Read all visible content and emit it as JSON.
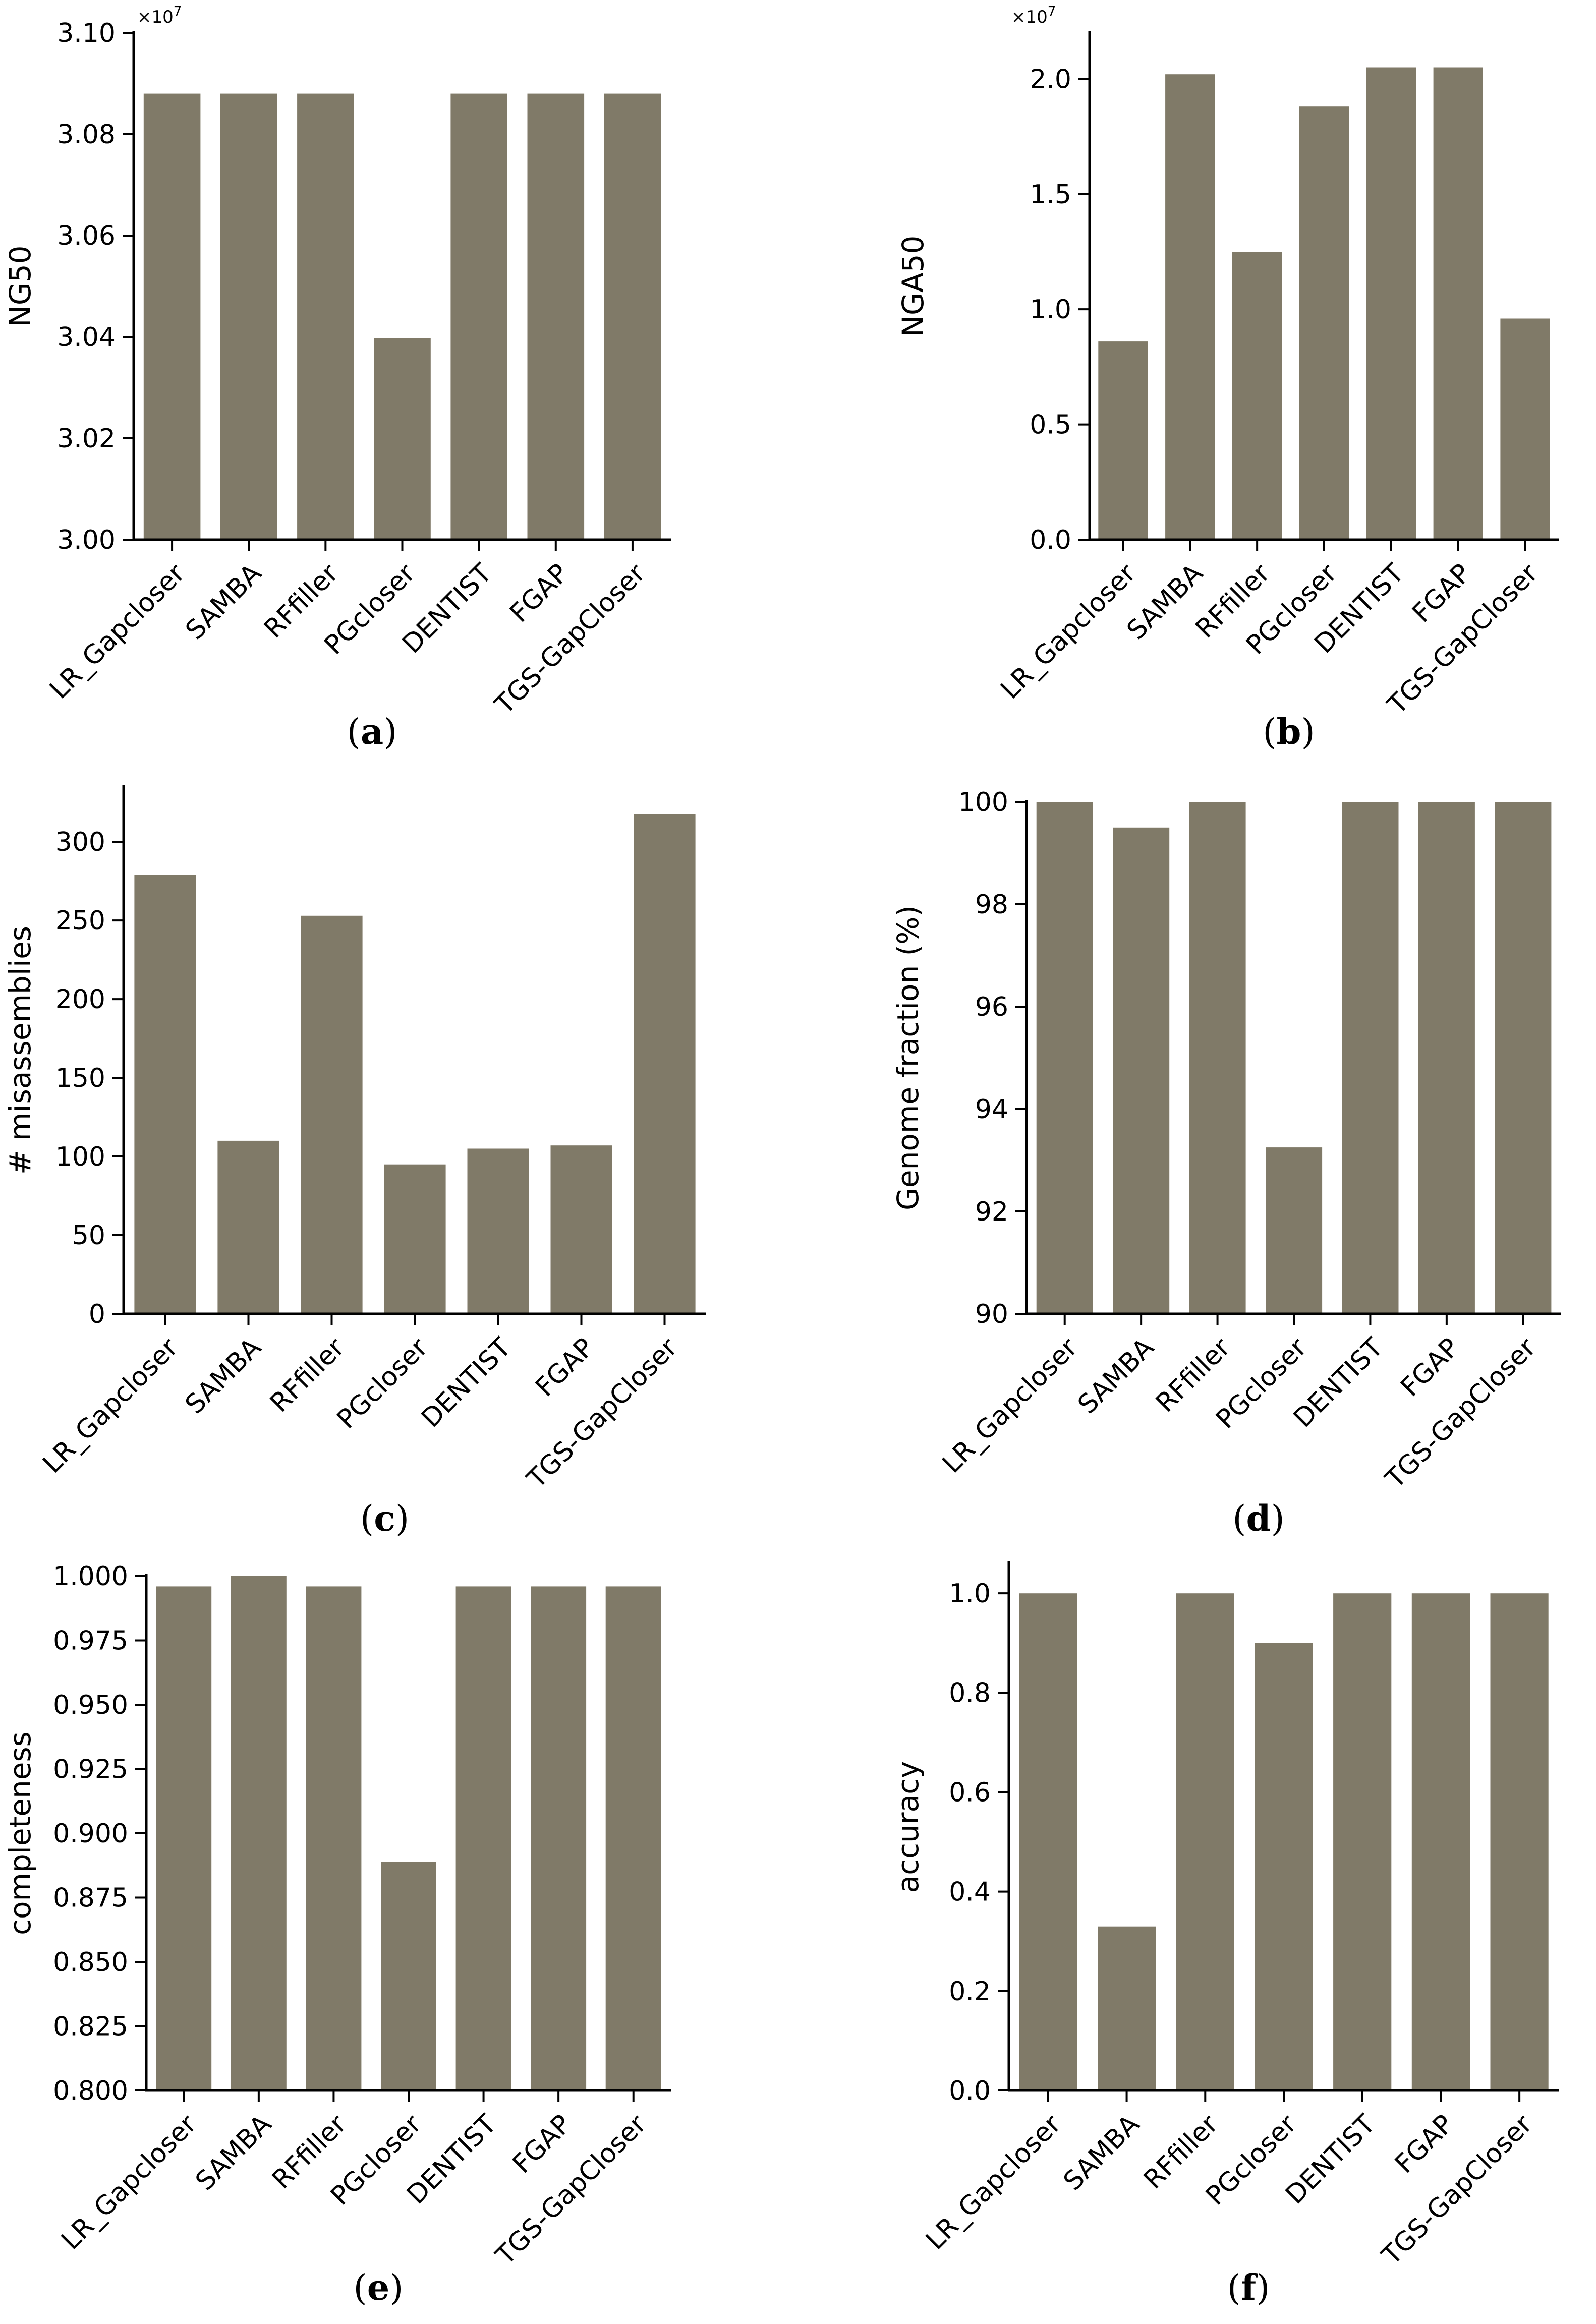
{
  "colors": {
    "bar": "#807a68",
    "axis": "#000000",
    "text": "#000000",
    "background": "#ffffff"
  },
  "chart_data": [
    {
      "panel": "a",
      "caption": {
        "open": "(",
        "letter": "a",
        "close": ")"
      },
      "type": "bar",
      "categories": [
        "LR_Gapcloser",
        "SAMBA",
        "RFfiller",
        "PGcloser",
        "DENTIST",
        "FGAP",
        "TGS-GapCloser"
      ],
      "values": [
        3.088,
        3.088,
        3.088,
        3.0397,
        3.088,
        3.088,
        3.088
      ],
      "ylabel": "NG50",
      "xlabel": "",
      "ylim": [
        3.0,
        3.1
      ],
      "yticks": [
        "3.00",
        "3.02",
        "3.04",
        "3.06",
        "3.08",
        "3.10"
      ],
      "multiplier": {
        "base": "×10",
        "exp": "7"
      }
    },
    {
      "panel": "b",
      "caption": {
        "open": "(",
        "letter": "b",
        "close": ")"
      },
      "type": "bar",
      "categories": [
        "LR_Gapcloser",
        "SAMBA",
        "RFfiller",
        "PGcloser",
        "DENTIST",
        "FGAP",
        "TGS-GapCloser"
      ],
      "values": [
        0.86,
        2.02,
        1.25,
        1.88,
        2.05,
        2.05,
        0.96
      ],
      "ylabel": "NGA50",
      "xlabel": "",
      "ylim": [
        0.0,
        2.2
      ],
      "yticks": [
        "0.0",
        "0.5",
        "1.0",
        "1.5",
        "2.0"
      ],
      "multiplier": {
        "base": "×10",
        "exp": "7"
      }
    },
    {
      "panel": "c",
      "caption": {
        "open": "(",
        "letter": "c",
        "close": ")"
      },
      "type": "bar",
      "categories": [
        "LR_Gapcloser",
        "SAMBA",
        "RFfiller",
        "PGcloser",
        "DENTIST",
        "FGAP",
        "TGS-GapCloser"
      ],
      "values": [
        279,
        110,
        253,
        95,
        105,
        107,
        318
      ],
      "ylabel": "# misassemblies",
      "xlabel": "",
      "ylim": [
        0,
        335
      ],
      "yticks": [
        "0",
        "50",
        "100",
        "150",
        "200",
        "250",
        "300"
      ]
    },
    {
      "panel": "d",
      "caption": {
        "open": "(",
        "letter": "d",
        "close": ")"
      },
      "type": "bar",
      "categories": [
        "LR_Gapcloser",
        "SAMBA",
        "RFfiller",
        "PGcloser",
        "DENTIST",
        "FGAP",
        "TGS-GapCloser"
      ],
      "values": [
        100.0,
        99.5,
        100.0,
        93.25,
        100.0,
        100.0,
        100.0
      ],
      "ylabel": "Genome fraction (%)",
      "xlabel": "",
      "ylim": [
        90,
        100
      ],
      "yticks": [
        "90",
        "92",
        "94",
        "96",
        "98",
        "100"
      ]
    },
    {
      "panel": "e",
      "caption": {
        "open": "(",
        "letter": "e",
        "close": ")"
      },
      "type": "bar",
      "categories": [
        "LR_Gapcloser",
        "SAMBA",
        "RFfiller",
        "PGcloser",
        "DENTIST",
        "FGAP",
        "TGS-GapCloser"
      ],
      "values": [
        0.996,
        1.0,
        0.996,
        0.889,
        0.996,
        0.996,
        0.996
      ],
      "ylabel": "completeness",
      "xlabel": "",
      "ylim": [
        0.8,
        1.0
      ],
      "yticks": [
        "0.800",
        "0.825",
        "0.850",
        "0.875",
        "0.900",
        "0.925",
        "0.950",
        "0.975",
        "1.000"
      ]
    },
    {
      "panel": "f",
      "caption": {
        "open": "(",
        "letter": "f",
        "close": ")"
      },
      "type": "bar",
      "categories": [
        "LR_Gapcloser",
        "SAMBA",
        "RFfiller",
        "PGcloser",
        "DENTIST",
        "FGAP",
        "TGS-GapCloser"
      ],
      "values": [
        1.0,
        0.33,
        1.0,
        0.9,
        1.0,
        1.0,
        1.0
      ],
      "ylabel": "accuracy",
      "xlabel": "",
      "ylim": [
        0.0,
        1.06
      ],
      "yticks": [
        "0.0",
        "0.2",
        "0.4",
        "0.6",
        "0.8",
        "1.0"
      ]
    }
  ]
}
